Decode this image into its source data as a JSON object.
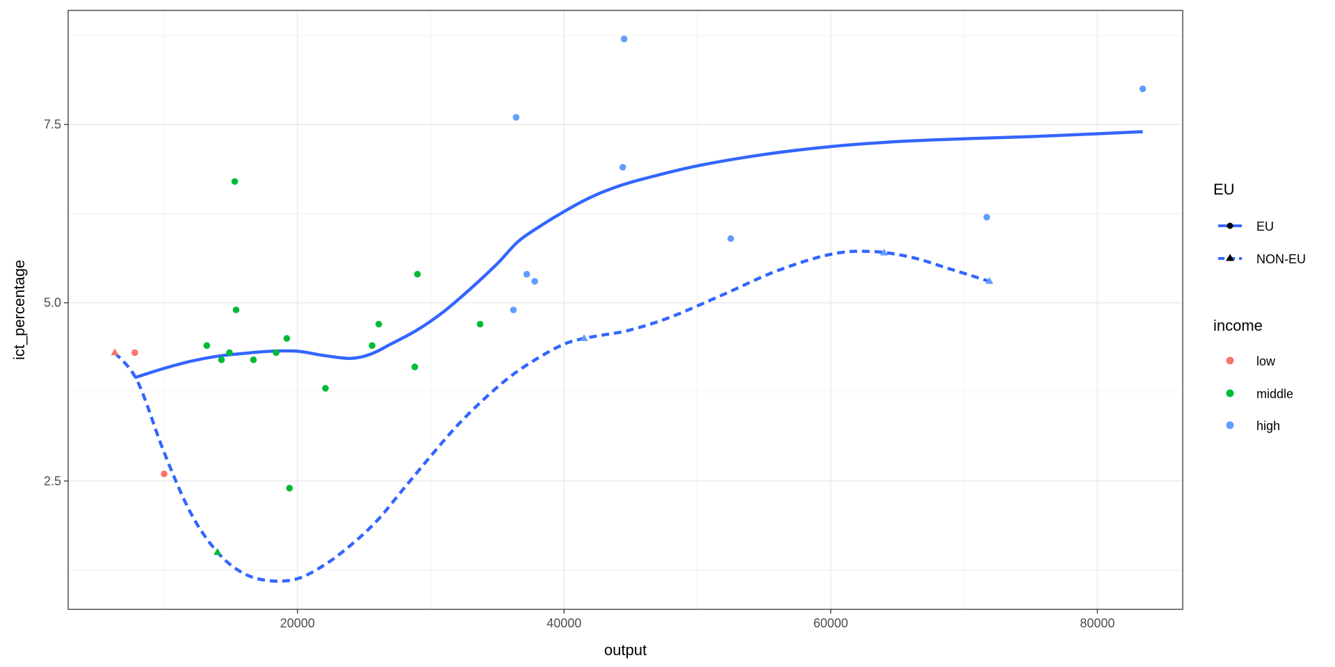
{
  "chart_data": {
    "type": "scatter",
    "xlabel": "output",
    "ylabel": "ict_percentage",
    "xlim": [
      2800,
      86400
    ],
    "ylim": [
      0.7,
      9.1
    ],
    "x_ticks": [
      20000,
      40000,
      60000,
      80000
    ],
    "y_ticks": [
      2.5,
      5.0,
      7.5
    ],
    "y_tick_labels": [
      "2.5",
      "5.0",
      "7.5"
    ],
    "grid": true,
    "legend_position": "right",
    "legend": {
      "eu_title": "EU",
      "eu_items": [
        {
          "label": "EU",
          "linetype": "solid",
          "shape": "circle"
        },
        {
          "label": "NON-EU",
          "linetype": "dashed",
          "shape": "triangle"
        }
      ],
      "income_title": "income",
      "income_items": [
        {
          "label": "low",
          "color": "#F8766D"
        },
        {
          "label": "middle",
          "color": "#00BA38"
        },
        {
          "label": "high",
          "color": "#619CFF"
        }
      ]
    },
    "colors": {
      "low": "#F8766D",
      "middle": "#00BA38",
      "high": "#619CFF",
      "smooth": "#3366FF"
    },
    "points": [
      {
        "x": 6300,
        "y": 4.3,
        "income": "low",
        "eu": "NON-EU"
      },
      {
        "x": 7800,
        "y": 4.3,
        "income": "low",
        "eu": "EU"
      },
      {
        "x": 10000,
        "y": 2.6,
        "income": "low",
        "eu": "EU"
      },
      {
        "x": 13200,
        "y": 4.4,
        "income": "middle",
        "eu": "EU"
      },
      {
        "x": 14000,
        "y": 1.5,
        "income": "middle",
        "eu": "NON-EU"
      },
      {
        "x": 14300,
        "y": 4.2,
        "income": "middle",
        "eu": "EU"
      },
      {
        "x": 14900,
        "y": 4.3,
        "income": "middle",
        "eu": "EU"
      },
      {
        "x": 15300,
        "y": 6.7,
        "income": "middle",
        "eu": "EU"
      },
      {
        "x": 15400,
        "y": 4.9,
        "income": "middle",
        "eu": "EU"
      },
      {
        "x": 16700,
        "y": 4.2,
        "income": "middle",
        "eu": "EU"
      },
      {
        "x": 18400,
        "y": 4.3,
        "income": "middle",
        "eu": "EU"
      },
      {
        "x": 19200,
        "y": 4.5,
        "income": "middle",
        "eu": "EU"
      },
      {
        "x": 19400,
        "y": 2.4,
        "income": "middle",
        "eu": "EU"
      },
      {
        "x": 22100,
        "y": 3.8,
        "income": "middle",
        "eu": "EU"
      },
      {
        "x": 25600,
        "y": 4.4,
        "income": "middle",
        "eu": "EU"
      },
      {
        "x": 26100,
        "y": 4.7,
        "income": "middle",
        "eu": "EU"
      },
      {
        "x": 28800,
        "y": 4.1,
        "income": "middle",
        "eu": "EU"
      },
      {
        "x": 29000,
        "y": 5.4,
        "income": "middle",
        "eu": "EU"
      },
      {
        "x": 33700,
        "y": 4.7,
        "income": "middle",
        "eu": "EU"
      },
      {
        "x": 36200,
        "y": 4.9,
        "income": "high",
        "eu": "EU"
      },
      {
        "x": 36400,
        "y": 7.6,
        "income": "high",
        "eu": "EU"
      },
      {
        "x": 37200,
        "y": 5.4,
        "income": "high",
        "eu": "EU"
      },
      {
        "x": 37800,
        "y": 5.3,
        "income": "high",
        "eu": "EU"
      },
      {
        "x": 41500,
        "y": 4.5,
        "income": "high",
        "eu": "NON-EU"
      },
      {
        "x": 44400,
        "y": 6.9,
        "income": "high",
        "eu": "EU"
      },
      {
        "x": 44500,
        "y": 8.7,
        "income": "high",
        "eu": "EU"
      },
      {
        "x": 52500,
        "y": 5.9,
        "income": "high",
        "eu": "EU"
      },
      {
        "x": 64000,
        "y": 5.7,
        "income": "high",
        "eu": "NON-EU"
      },
      {
        "x": 71700,
        "y": 6.2,
        "income": "high",
        "eu": "EU"
      },
      {
        "x": 71900,
        "y": 5.3,
        "income": "high",
        "eu": "NON-EU"
      },
      {
        "x": 83400,
        "y": 8.0,
        "income": "high",
        "eu": "EU"
      }
    ],
    "smooth_lines": [
      {
        "name": "EU",
        "linetype": "solid",
        "x": [
          7800,
          10000,
          12000,
          14000,
          16000,
          18000,
          20000,
          22000,
          24000,
          25500,
          27000,
          29000,
          31000,
          33000,
          35000,
          36500,
          38000,
          40000,
          42000,
          44000,
          46000,
          50000,
          55000,
          60000,
          65000,
          70000,
          75000,
          80000,
          83400
        ],
        "y": [
          3.95,
          4.08,
          4.18,
          4.25,
          4.29,
          4.32,
          4.32,
          4.26,
          4.22,
          4.28,
          4.42,
          4.62,
          4.88,
          5.2,
          5.55,
          5.85,
          6.05,
          6.28,
          6.48,
          6.63,
          6.74,
          6.92,
          7.08,
          7.19,
          7.26,
          7.3,
          7.33,
          7.37,
          7.4
        ]
      },
      {
        "name": "NON-EU",
        "linetype": "dashed",
        "x": [
          6300,
          8000,
          10000,
          12000,
          14000,
          16000,
          18000,
          20000,
          22000,
          24000,
          26000,
          28000,
          30000,
          32000,
          34000,
          36000,
          38000,
          40000,
          41500,
          43000,
          45000,
          48000,
          52000,
          56000,
          60000,
          63000,
          66000,
          69000,
          71900
        ],
        "y": [
          4.3,
          3.9,
          2.9,
          2.05,
          1.5,
          1.2,
          1.1,
          1.13,
          1.32,
          1.6,
          1.95,
          2.4,
          2.85,
          3.28,
          3.65,
          3.97,
          4.22,
          4.42,
          4.5,
          4.55,
          4.62,
          4.8,
          5.12,
          5.45,
          5.68,
          5.72,
          5.64,
          5.47,
          5.3
        ]
      }
    ]
  }
}
